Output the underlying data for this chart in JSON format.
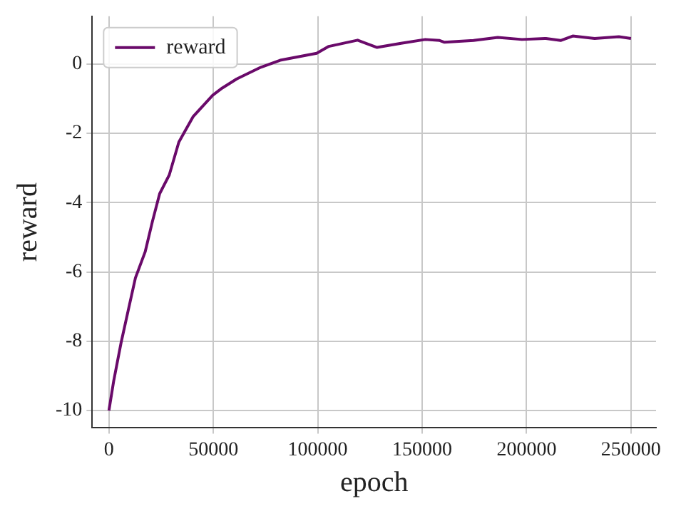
{
  "chart_data": {
    "type": "line",
    "xlabel": "epoch",
    "ylabel": "reward",
    "xlim": [
      -8000,
      262000
    ],
    "xticks": [
      0,
      50000,
      100000,
      150000,
      200000,
      250000
    ],
    "ylim": [
      -10.5,
      1.38
    ],
    "yticks": [
      -10,
      -8,
      -6,
      -4,
      -2,
      0
    ],
    "grid": true,
    "legend": "top left",
    "marker": "none",
    "line_style": "solid",
    "series": [
      {
        "name": "reward",
        "color": "#6a0a6a",
        "x": [
          0,
          2300,
          5760,
          9230,
          12700,
          17350,
          20800,
          24300,
          28900,
          33500,
          40400,
          49700,
          54300,
          61200,
          72800,
          82000,
          99500,
          105300,
          119100,
          128400,
          139900,
          151500,
          158400,
          160700,
          174600,
          186200,
          197800,
          209300,
          216300,
          222100,
          232600,
          244200,
          250000
        ],
        "values": [
          -10,
          -9.14,
          -8.06,
          -7.11,
          -6.17,
          -5.42,
          -4.55,
          -3.74,
          -3.2,
          -2.25,
          -1.51,
          -0.9,
          -0.69,
          -0.43,
          -0.09,
          0.11,
          0.31,
          0.51,
          0.69,
          0.48,
          0.6,
          0.71,
          0.68,
          0.63,
          0.68,
          0.77,
          0.71,
          0.74,
          0.68,
          0.81,
          0.74,
          0.79,
          0.74
        ]
      }
    ]
  }
}
